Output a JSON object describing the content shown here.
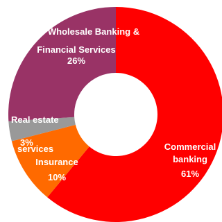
{
  "chart_data": {
    "type": "pie",
    "style": "donut",
    "categories": [
      "Commercial banking",
      "Insurance",
      "Real estate services",
      "Wholesale Banking & Financial Services"
    ],
    "values": [
      61,
      10,
      3,
      26
    ],
    "value_labels": [
      "61%",
      "10%",
      "3%",
      "26%"
    ],
    "colors": [
      "#ff0000",
      "#ff6a00",
      "#999999",
      "#993366"
    ],
    "start": "12 o'clock",
    "direction": "clockwise",
    "legend": "none",
    "labels": {
      "commercial": {
        "line1": "Commercial",
        "line2": "banking",
        "pct": "61%"
      },
      "insurance": {
        "line1": "Insurance",
        "pct": "10%"
      },
      "realestate": {
        "line1": "Real estate",
        "line2": "services",
        "pct": "3%"
      },
      "wholesale": {
        "line1": "Wholesale Banking &",
        "line2": "Financial Services",
        "pct": "26%"
      }
    }
  }
}
